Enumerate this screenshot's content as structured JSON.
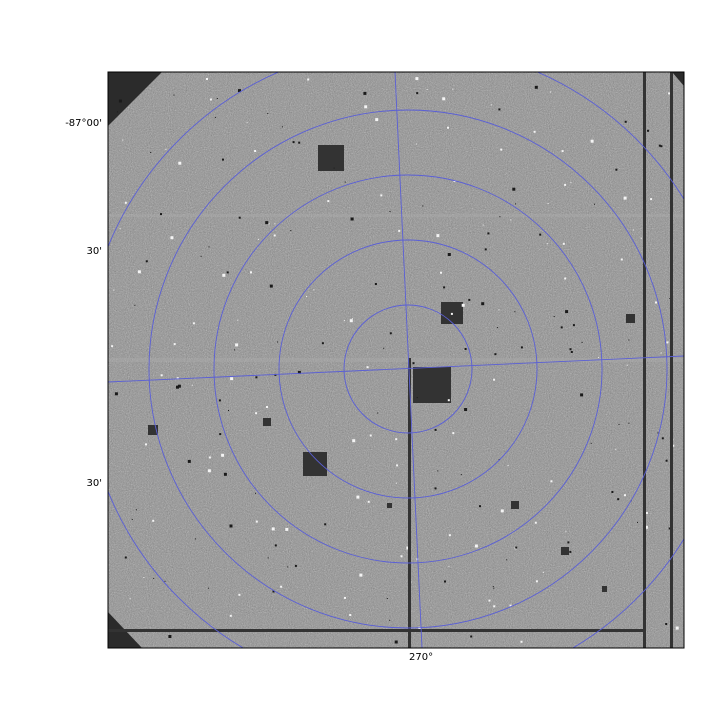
{
  "axes": {
    "y_tick_labels": [
      "-87°00'",
      "30'",
      "30'"
    ],
    "x_tick_labels": [
      "270°"
    ]
  },
  "image": {
    "background_color": "#8f8f8f",
    "grid_color": "#5a5fd6",
    "mask_color": "#333333",
    "corner_color": "#2b2b2b"
  }
}
